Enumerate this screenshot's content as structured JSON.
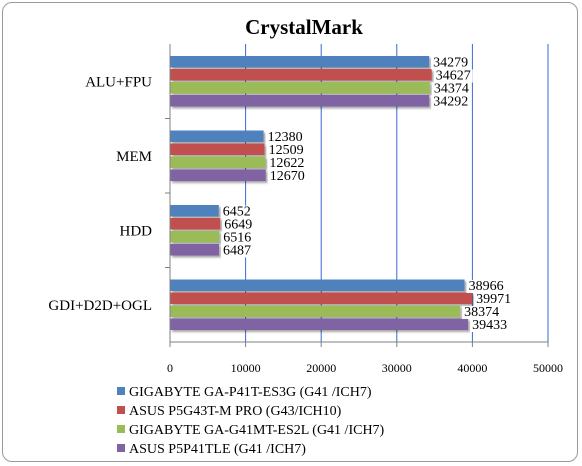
{
  "chart_data": {
    "type": "bar",
    "orientation": "horizontal",
    "title": "CrystalMark",
    "categories": [
      "ALU+FPU",
      "MEM",
      "HDD",
      "GDI+D2D+OGL"
    ],
    "series": [
      {
        "name": "GIGABYTE GA-P41T-ES3G (G41 /ICH7)",
        "color": "#4f81bd",
        "values": [
          34279,
          12380,
          6452,
          38966
        ]
      },
      {
        "name": "ASUS P5G43T-M PRO (G43/ICH10)",
        "color": "#c0504d",
        "values": [
          34627,
          12509,
          6649,
          39971
        ]
      },
      {
        "name": "GIGABYTE GA-G41MT-ES2L (G41 /ICH7)",
        "color": "#9bbb59",
        "values": [
          34374,
          12622,
          6516,
          38374
        ]
      },
      {
        "name": "ASUS P5P41TLE (G41 /ICH7)",
        "color": "#8064a2",
        "values": [
          34292,
          12670,
          6487,
          39433
        ]
      }
    ],
    "xlim": [
      0,
      50000
    ],
    "xticks": [
      0,
      10000,
      20000,
      30000,
      40000,
      50000
    ],
    "xtick_labels": [
      "0",
      "10000",
      "20000",
      "30000",
      "40000",
      "50000"
    ],
    "grid": "vertical",
    "legend_position": "bottom"
  }
}
